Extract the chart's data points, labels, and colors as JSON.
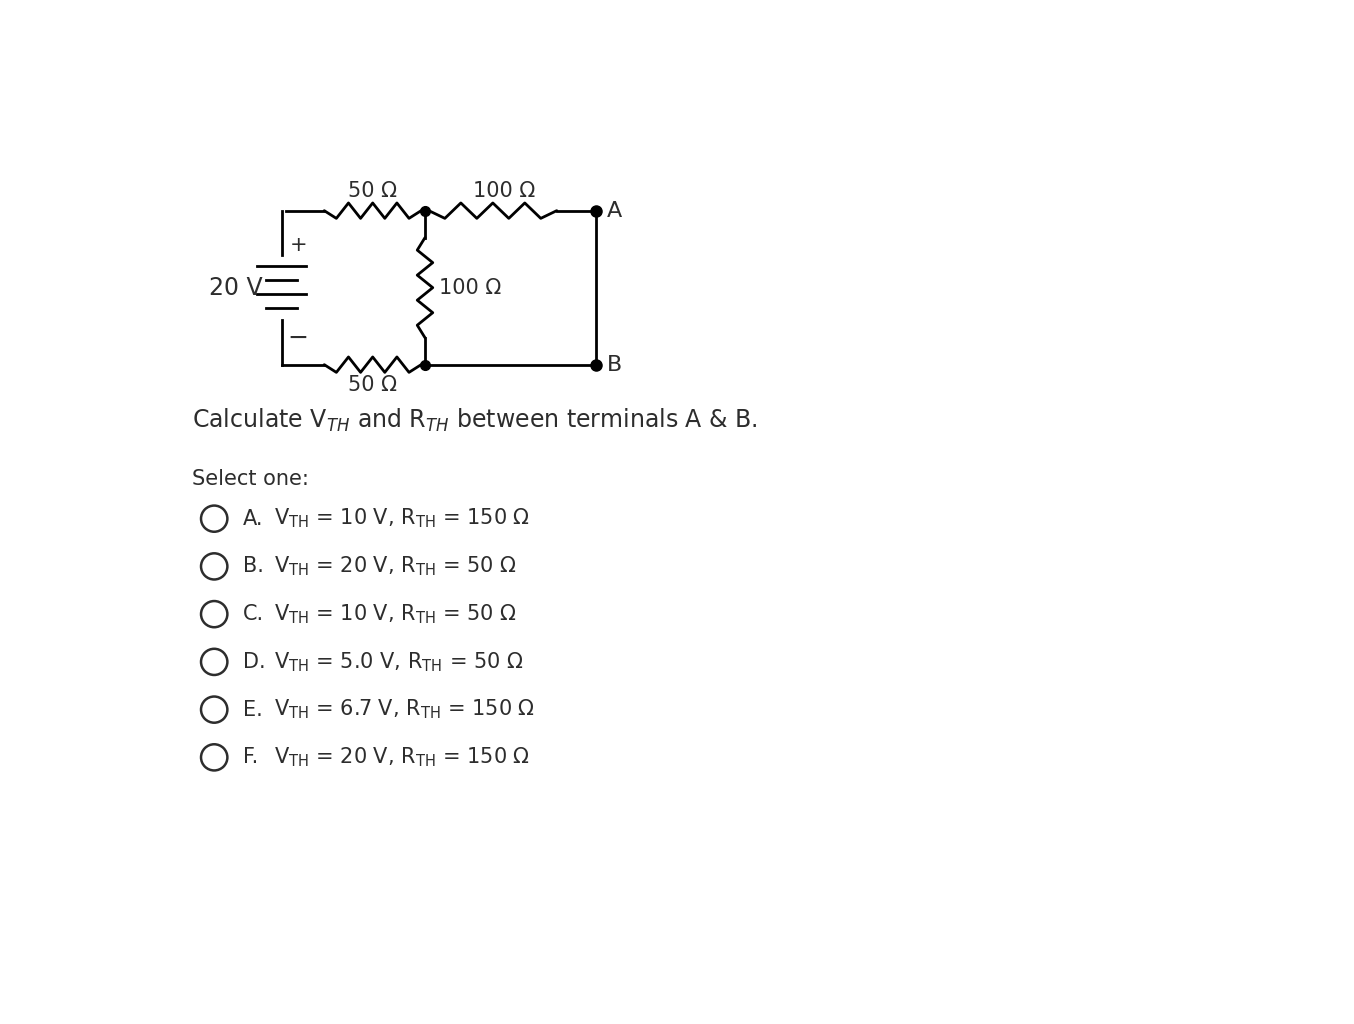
{
  "background_color": "#ffffff",
  "fig_width": 13.54,
  "fig_height": 10.24,
  "description": "Calculate V$_{TH}$ and R$_{TH}$ between terminals A & B.",
  "select_one": "Select one:",
  "options": [
    {
      "letter": "A",
      "vth": "10 V",
      "rth": "150 Ω"
    },
    {
      "letter": "B",
      "vth": "20 V",
      "rth": "50 Ω"
    },
    {
      "letter": "C",
      "vth": "10 V",
      "rth": "50 Ω"
    },
    {
      "letter": "D",
      "vth": "5.0 V",
      "rth": "50 Ω"
    },
    {
      "letter": "E",
      "vth": "6.7 V",
      "rth": "150 Ω"
    },
    {
      "letter": "F",
      "vth": "20 V",
      "rth": "150 Ω"
    }
  ],
  "font_sizes": {
    "circuit_label": 15,
    "description": 17,
    "select_one": 15,
    "option": 15,
    "terminal": 16,
    "voltage": 17
  },
  "text_color": "#2d2d2d",
  "lw": 2.0
}
